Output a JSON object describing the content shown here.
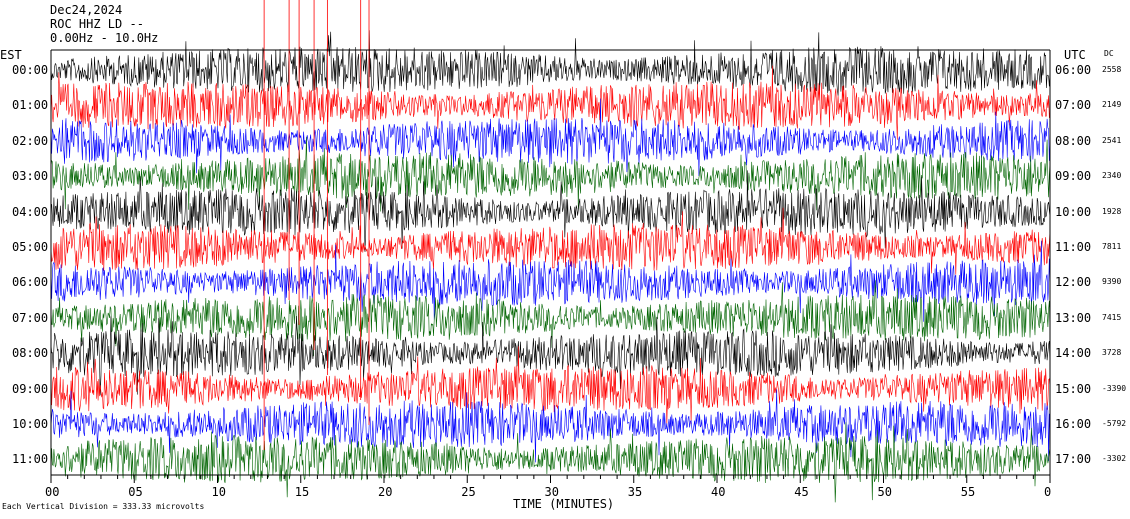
{
  "header": {
    "date": "Dec24,2024",
    "station": "ROC HHZ LD --",
    "filter": "0.00Hz - 10.0Hz"
  },
  "left_axis_title": "EST",
  "right_axis_title": "UTC",
  "dc_title": "DC",
  "footer_note": "Each Vertical Division = 333.33 microvolts",
  "chart_data": {
    "type": "line",
    "xlabel": "TIME (MINUTES)",
    "xlim": [
      0,
      60
    ],
    "x_ticks": [
      "00",
      "05",
      "10",
      "15",
      "20",
      "25",
      "30",
      "35",
      "40",
      "45",
      "50",
      "55",
      "0"
    ],
    "rows_est": [
      "00:00",
      "01:00",
      "02:00",
      "03:00",
      "04:00",
      "05:00",
      "06:00",
      "07:00",
      "08:00",
      "09:00",
      "10:00",
      "11:00"
    ],
    "rows_utc": [
      "06:00",
      "07:00",
      "08:00",
      "09:00",
      "10:00",
      "11:00",
      "12:00",
      "13:00",
      "14:00",
      "15:00",
      "16:00",
      "17:00"
    ],
    "dc_offsets": [
      "2558",
      "2149",
      "2541",
      "2340",
      "1928",
      "7811",
      "9390",
      "7415",
      "3728",
      "-3390",
      "-5792",
      "-3302"
    ],
    "trace_colors": [
      "#000000",
      "#ff0000",
      "#0000ff",
      "#006400"
    ],
    "vertical_division_microvolts": 333.33
  }
}
